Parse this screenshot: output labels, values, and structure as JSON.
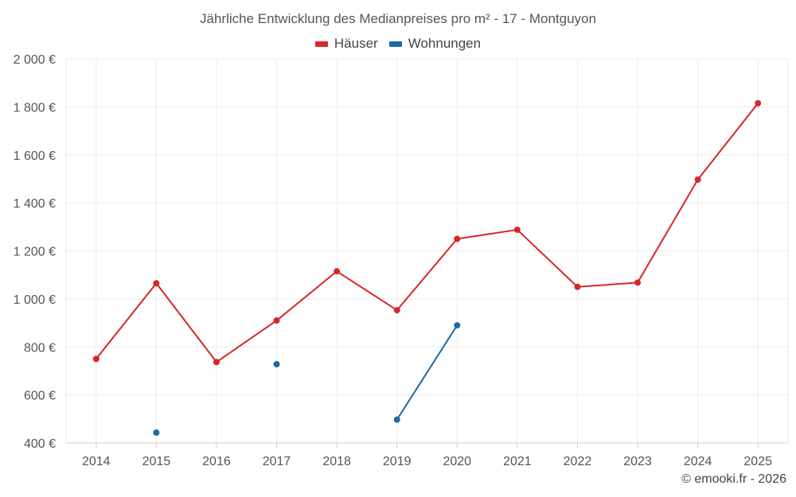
{
  "chart_data": {
    "type": "line",
    "title": "Jährliche Entwicklung des Medianpreises pro m² - 17 - Montguyon",
    "categories": [
      "2014",
      "2015",
      "2016",
      "2017",
      "2018",
      "2019",
      "2020",
      "2021",
      "2022",
      "2023",
      "2024",
      "2025"
    ],
    "y_ticks": [
      "400 €",
      "600 €",
      "800 €",
      "1 000 €",
      "1 200 €",
      "1 400 €",
      "1 600 €",
      "1 800 €",
      "2 000 €"
    ],
    "y_tick_values": [
      400,
      600,
      800,
      1000,
      1200,
      1400,
      1600,
      1800,
      2000
    ],
    "ylim": [
      400,
      2000
    ],
    "xlabel": "",
    "ylabel": "",
    "grid": true,
    "legend_position": "top-center",
    "series": [
      {
        "name": "Häuser",
        "color": "#d62728",
        "values": [
          750,
          1065,
          737,
          910,
          1115,
          953,
          1250,
          1288,
          1050,
          1068,
          1497,
          1815
        ]
      },
      {
        "name": "Wohnungen",
        "color": "#1a6aa6",
        "values": [
          null,
          443,
          null,
          728,
          null,
          497,
          890,
          null,
          null,
          null,
          null,
          null
        ]
      }
    ]
  },
  "credit": "© emooki.fr - 2026"
}
